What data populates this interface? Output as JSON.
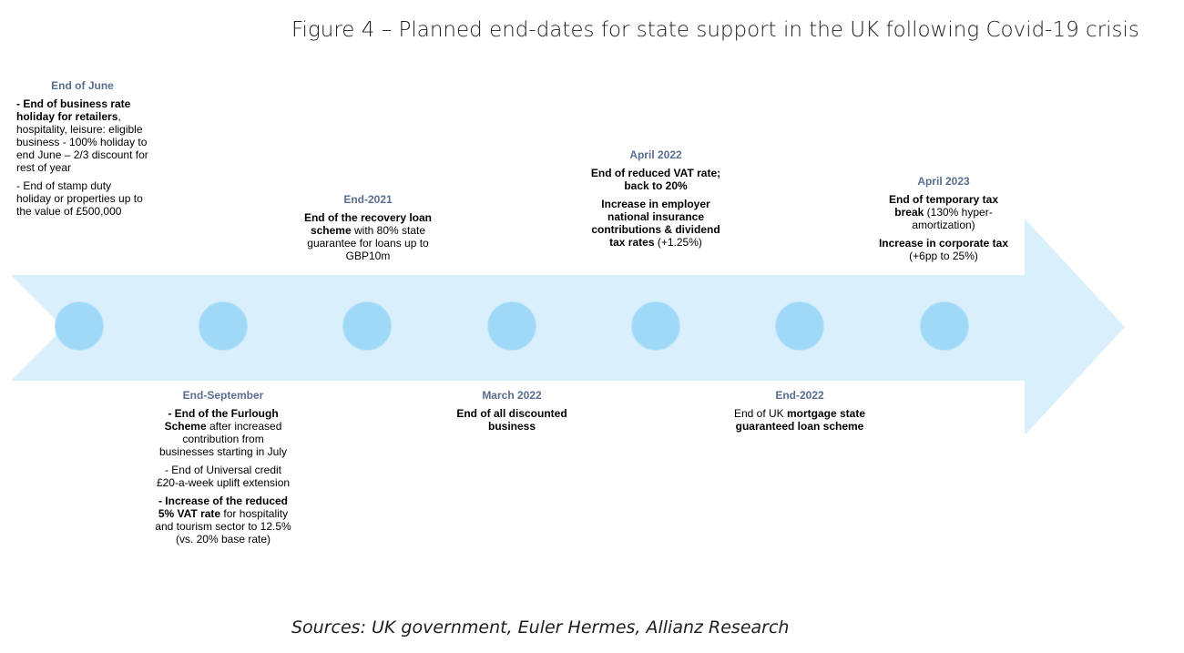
{
  "title": "Figure 4 – Planned end-dates for state support in the UK following Covid-19 crisis",
  "source": "Sources: UK government, Euler Hermes, Allianz Research",
  "colors": {
    "arrow": "#d9f0fc",
    "dot": "#9fd9f7",
    "date": "#5a6e8e"
  },
  "milestones": [
    {
      "date": "End of June",
      "items": [
        {
          "bold": "- End of business rate holiday for retailers",
          "text": ", hospitality, leisure: eligible business - 100% holiday to end June – 2/3 discount for rest of year"
        },
        {
          "bold": "",
          "text": "- End of stamp duty holiday or properties up to the value of £500,000"
        }
      ]
    },
    {
      "date": "End-September",
      "items": [
        {
          "bold": "- End of the Furlough Scheme",
          "text": " after increased contribution from businesses starting in July"
        },
        {
          "bold": "",
          "text": "- End of Universal credit £20-a-week uplift extension"
        },
        {
          "bold": "- Increase of the reduced 5% VAT rate",
          "text": " for hospitality and tourism sector to 12.5% (vs. 20% base rate)"
        }
      ]
    },
    {
      "date": "End-2021",
      "items": [
        {
          "bold": "End of the recovery loan scheme",
          "text": " with 80% state guarantee for loans up to GBP10m"
        }
      ]
    },
    {
      "date": "March 2022",
      "items": [
        {
          "bold": "End of all discounted business",
          "text": ""
        }
      ]
    },
    {
      "date": "April 2022",
      "items": [
        {
          "bold": "End of reduced VAT rate; back to 20%",
          "text": ""
        },
        {
          "bold": "Increase in employer national insurance contributions & dividend tax rates",
          "text": " (+1.25%)"
        }
      ]
    },
    {
      "date": "End-2022",
      "items": [
        {
          "bold": "",
          "text": "End of UK "
        },
        {
          "bold": "mortgage state guaranteed loan scheme",
          "text": ""
        }
      ]
    },
    {
      "date": "April 2023",
      "items": [
        {
          "bold": "End of temporary tax break",
          "text": " (130% hyper-amortization)"
        },
        {
          "bold": "Increase in corporate tax",
          "text": " (+6pp to 25%)"
        }
      ]
    }
  ]
}
